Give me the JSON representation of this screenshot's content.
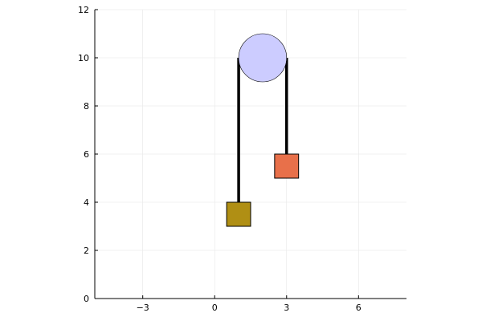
{
  "axes": {
    "xlim": [
      -5,
      8
    ],
    "ylim": [
      0,
      12
    ],
    "x_ticks": [
      {
        "value": -3,
        "label": "−3"
      },
      {
        "value": 0,
        "label": "0"
      },
      {
        "value": 3,
        "label": "3"
      },
      {
        "value": 6,
        "label": "6"
      }
    ],
    "y_ticks": [
      {
        "value": 0,
        "label": "0"
      },
      {
        "value": 2,
        "label": "2"
      },
      {
        "value": 4,
        "label": "4"
      },
      {
        "value": 6,
        "label": "6"
      },
      {
        "value": 8,
        "label": "8"
      },
      {
        "value": 10,
        "label": "10"
      },
      {
        "value": 12,
        "label": "12"
      }
    ],
    "grid": true
  },
  "pulley": {
    "cx": 2,
    "cy": 10,
    "r": 1,
    "fill": "#ccccff",
    "stroke": "#000000"
  },
  "ropes": [
    {
      "x": 1,
      "y_top": 10,
      "y_bottom": 4,
      "color": "#000000"
    },
    {
      "x": 3,
      "y_top": 10,
      "y_bottom": 6,
      "color": "#000000"
    }
  ],
  "masses": [
    {
      "name": "left-mass",
      "cx": 1,
      "cy": 3.5,
      "size": 1,
      "fill": "#b08f14",
      "stroke": "#000000"
    },
    {
      "name": "right-mass",
      "cx": 3,
      "cy": 5.5,
      "size": 1,
      "fill": "#e8704a",
      "stroke": "#000000"
    }
  ]
}
